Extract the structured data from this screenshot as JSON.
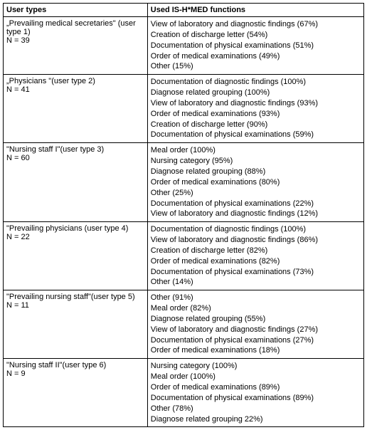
{
  "headers": {
    "left": "User types",
    "right": "Used IS-H*MED functions"
  },
  "rows": [
    {
      "name": "„Prevailing medical secretaries\" (user type 1)",
      "n": "N = 39",
      "funcs": [
        "View of laboratory and diagnostic findings (67%)",
        "Creation of discharge letter (54%)",
        "Documentation of physical examinations (51%)",
        "Order of medical examinations (49%)",
        "Other (15%)"
      ]
    },
    {
      "name": "„Physicians \"(user type 2)",
      "n": "N = 41",
      "funcs": [
        "Documentation of diagnostic findings (100%)",
        "Diagnose related grouping (100%)",
        "View of laboratory and diagnostic findings (93%)",
        "Order of medical examinations (93%)",
        "Creation of discharge letter (90%)",
        "Documentation of physical examinations (59%)"
      ]
    },
    {
      "name": "\"Nursing staff I\"(user type 3)",
      "n": "N = 60",
      "funcs": [
        "Meal order (100%)",
        "Nursing category (95%)",
        "Diagnose related grouping (88%)",
        "Order of medical examinations (80%)",
        "Other (25%)",
        "Documentation of physical examinations (22%)",
        "View of laboratory and diagnostic findings (12%)"
      ]
    },
    {
      "name": "\"Prevailing physicians (user type 4)",
      "n": "N = 22",
      "funcs": [
        "Documentation of diagnostic findings (100%)",
        "View of laboratory and diagnostic findings (86%)",
        "Creation of discharge letter (82%)",
        "Order of medical examinations (82%)",
        "Documentation of physical examinations (73%)",
        "Other (14%)"
      ]
    },
    {
      "name": "\"Prevailing nursing staff\"(user type 5)",
      "n": "N = 11",
      "funcs": [
        "Other (91%)",
        "Meal order (82%)",
        "Diagnose related grouping (55%)",
        "View of laboratory and diagnostic findings (27%)",
        "Documentation of physical examinations (27%)",
        "Order of medical examinations (18%)"
      ]
    },
    {
      "name": "\"Nursing staff II\"(user type 6)",
      "n": "N = 9",
      "funcs": [
        "Nursing category (100%)",
        "Meal order (100%)",
        "Order of medical examinations (89%)",
        "Documentation of physical examinations (89%)",
        "Other (78%)",
        "Diagnose related grouping 22%)"
      ]
    }
  ]
}
